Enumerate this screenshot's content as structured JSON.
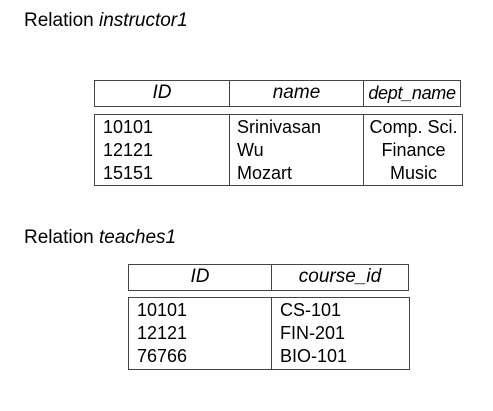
{
  "instructor1": {
    "caption_prefix": "Relation ",
    "caption_name": "instructor1",
    "headers": [
      "ID",
      "name",
      "dept_name"
    ],
    "rows": [
      [
        "10101",
        "Srinivasan",
        "Comp. Sci."
      ],
      [
        "12121",
        "Wu",
        "Finance"
      ],
      [
        "15151",
        "Mozart",
        "Music"
      ]
    ]
  },
  "teaches1": {
    "caption_prefix": "Relation ",
    "caption_name": "teaches1",
    "headers": [
      "ID",
      "course_id"
    ],
    "rows": [
      [
        "10101",
        "CS-101"
      ],
      [
        "12121",
        "FIN-201"
      ],
      [
        "76766",
        "BIO-101"
      ]
    ]
  }
}
